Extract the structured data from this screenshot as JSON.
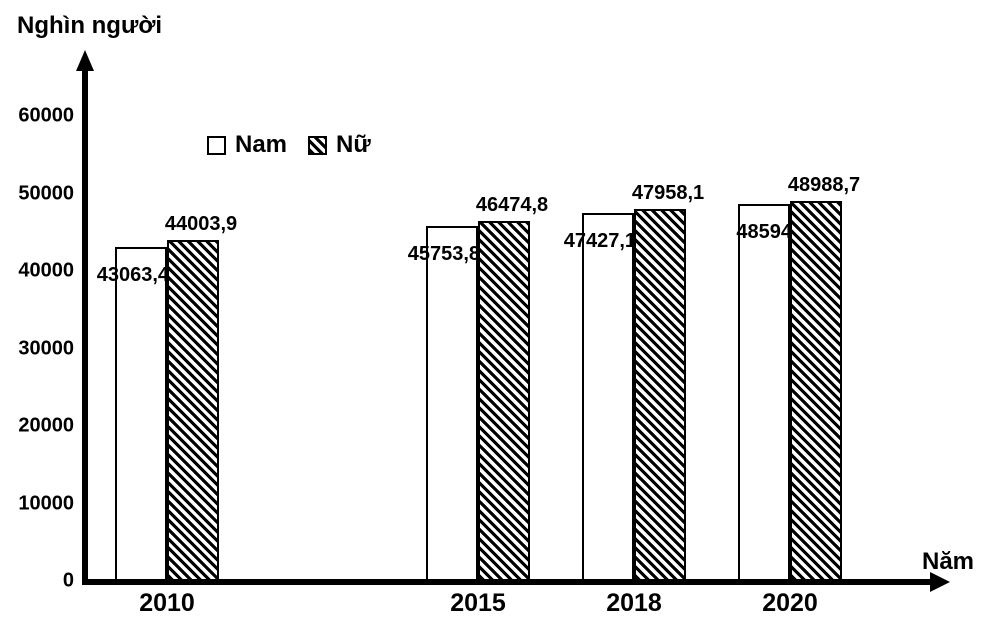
{
  "chart_data": {
    "type": "bar",
    "ylabel": "Nghìn người",
    "xlabel": "Năm",
    "categories": [
      "2010",
      "2015",
      "2018",
      "2020"
    ],
    "series": [
      {
        "name": "Nam",
        "pattern": "solid-white",
        "values": [
          43063.4,
          45753.8,
          47427.1,
          48594
        ],
        "labels": [
          "43063,4",
          "45753,8",
          "47427,1",
          "48594"
        ]
      },
      {
        "name": "Nữ",
        "pattern": "diagonal-hatch",
        "values": [
          44003.9,
          46474.8,
          47958.1,
          48988.7
        ],
        "labels": [
          "44003,9",
          "46474,8",
          "47958,1",
          "48988,7"
        ]
      }
    ],
    "yticks": [
      "0",
      "10000",
      "20000",
      "30000",
      "40000",
      "50000",
      "60000"
    ],
    "ylim": [
      0,
      60000
    ],
    "grid": false,
    "legend_position": "top-inside"
  },
  "colors": {
    "foreground": "#000000",
    "background": "#ffffff",
    "bar_fill": "#ffffff",
    "hatch_color": "#000000"
  }
}
